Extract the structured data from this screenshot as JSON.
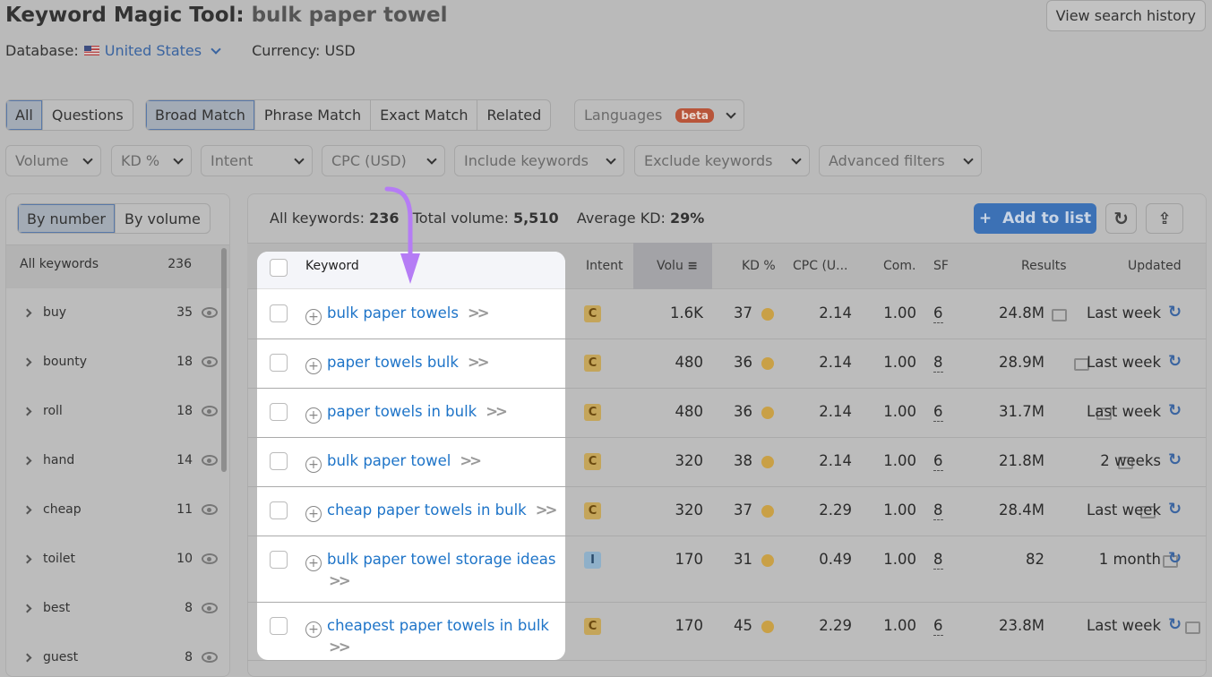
{
  "header": {
    "title": "Keyword Magic Tool:",
    "query": "bulk paper towel",
    "database_label": "Database:",
    "database": "United States",
    "currency": "Currency: USD",
    "history_button": "View search history"
  },
  "tabs1": [
    "All",
    "Questions"
  ],
  "tabs2": [
    "Broad Match",
    "Phrase Match",
    "Exact Match",
    "Related"
  ],
  "languages": {
    "label": "Languages",
    "badge": "beta"
  },
  "filters": [
    "Volume",
    "KD %",
    "Intent",
    "CPC (USD)",
    "Include keywords",
    "Exclude keywords",
    "Advanced filters"
  ],
  "sidebar": {
    "toggle": [
      "By number",
      "By volume"
    ],
    "all_label": "All keywords",
    "all_count": "236",
    "items": [
      {
        "label": "buy",
        "count": "35"
      },
      {
        "label": "bounty",
        "count": "18"
      },
      {
        "label": "roll",
        "count": "18"
      },
      {
        "label": "hand",
        "count": "14"
      },
      {
        "label": "cheap",
        "count": "11"
      },
      {
        "label": "toilet",
        "count": "10"
      },
      {
        "label": "best",
        "count": "8"
      },
      {
        "label": "guest",
        "count": "8"
      }
    ]
  },
  "stats": {
    "all_label": "All keywords:",
    "all": "236",
    "vol_label": "Total volume:",
    "vol": "5,510",
    "kd_label": "Average KD:",
    "kd": "29%"
  },
  "actions": {
    "add": "Add to list"
  },
  "columns": [
    "Keyword",
    "Intent",
    "Volu",
    "KD %",
    "CPC (U...",
    "Com.",
    "SF",
    "Results",
    "Updated"
  ],
  "colors": {
    "accent": "#1e74c8",
    "arrow": "#b57cf5",
    "intent_c": "#c4a55a",
    "intent_i": "#8fb0c9"
  },
  "rows": [
    {
      "keyword": "bulk paper towels",
      "intent": "C",
      "volume": "1.6K",
      "kd": "37",
      "cpc": "2.14",
      "com": "1.00",
      "sf": "6",
      "results": "24.8M",
      "updated": "Last week"
    },
    {
      "keyword": "paper towels bulk",
      "intent": "C",
      "volume": "480",
      "kd": "36",
      "cpc": "2.14",
      "com": "1.00",
      "sf": "8",
      "results": "28.9M",
      "updated": "Last week"
    },
    {
      "keyword": "paper towels in bulk",
      "intent": "C",
      "volume": "480",
      "kd": "36",
      "cpc": "2.14",
      "com": "1.00",
      "sf": "6",
      "results": "31.7M",
      "updated": "Last week"
    },
    {
      "keyword": "bulk paper towel",
      "intent": "C",
      "volume": "320",
      "kd": "38",
      "cpc": "2.14",
      "com": "1.00",
      "sf": "6",
      "results": "21.8M",
      "updated": "2 weeks"
    },
    {
      "keyword": "cheap paper towels in bulk",
      "intent": "C",
      "volume": "320",
      "kd": "37",
      "cpc": "2.29",
      "com": "1.00",
      "sf": "8",
      "results": "28.4M",
      "updated": "Last week"
    },
    {
      "keyword": "bulk paper towel storage ideas",
      "intent": "I",
      "volume": "170",
      "kd": "31",
      "cpc": "0.49",
      "com": "1.00",
      "sf": "8",
      "results": "82",
      "updated": "1 month"
    },
    {
      "keyword": "cheapest paper towels in bulk",
      "intent": "C",
      "volume": "170",
      "kd": "45",
      "cpc": "2.29",
      "com": "1.00",
      "sf": "6",
      "results": "23.8M",
      "updated": "Last week"
    }
  ]
}
